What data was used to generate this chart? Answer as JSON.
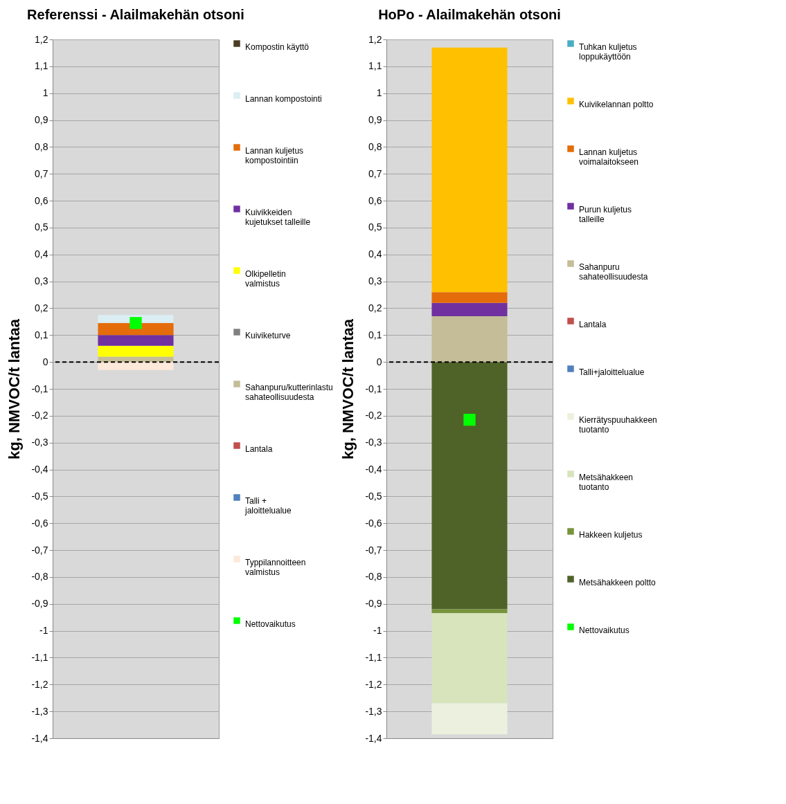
{
  "chart_data": [
    {
      "type": "bar",
      "title": "Referenssi - Alailmakehän otsoni",
      "ylabel": "kg, NMVOC/t lantaa",
      "categories": [
        null
      ],
      "stacked": true,
      "legend": "right",
      "grid": true,
      "tick_labels": "y",
      "ylim": [
        -1.4,
        1.2
      ],
      "yticks": [
        {
          "value": -1.4,
          "label": "-1,4"
        },
        {
          "value": -1.3,
          "label": "-1,3"
        },
        {
          "value": -1.2,
          "label": "-1,2"
        },
        {
          "value": -1.1,
          "label": "-1,1"
        },
        -1,
        {
          "value": -0.9,
          "label": "-0,9"
        },
        {
          "value": -0.8,
          "label": "-0,8"
        },
        {
          "value": -0.7,
          "label": "-0,7"
        },
        {
          "value": -0.6,
          "label": "-0,6"
        },
        {
          "value": -0.5,
          "label": "-0,5"
        },
        {
          "value": -0.4,
          "label": "-0,4"
        },
        {
          "value": -0.3,
          "label": "-0,3"
        },
        {
          "value": -0.2,
          "label": "-0,2"
        },
        {
          "value": -0.1,
          "label": "-0,1"
        },
        0,
        {
          "value": 0.1,
          "label": "0,1"
        },
        {
          "value": 0.2,
          "label": "0,2"
        },
        {
          "value": 0.3,
          "label": "0,3"
        },
        {
          "value": 0.4,
          "label": "0,4"
        },
        {
          "value": 0.5,
          "label": "0,5"
        },
        {
          "value": 0.6,
          "label": "0,6"
        },
        {
          "value": 0.7,
          "label": "0,7"
        },
        {
          "value": 0.8,
          "label": "0,8"
        },
        {
          "value": 0.9,
          "label": "0,9"
        },
        1,
        {
          "value": 1.1,
          "label": "1,1"
        },
        {
          "value": 1.2,
          "label": "1,2"
        }
      ],
      "ref_lines": [
        {
          "axis": "y",
          "value": 0,
          "line_style": "dashed",
          "color": "#000000"
        }
      ],
      "series": [
        {
          "name": "Typpilannoitteen valmistus",
          "color": "#fde9d9",
          "values": [
            -0.03
          ]
        },
        {
          "name": "Talli + jaloittelualue",
          "color": "#4f81bd",
          "values": [
            0
          ]
        },
        {
          "name": "Lantala",
          "color": "#c0504d",
          "values": [
            0
          ]
        },
        {
          "name": "Sahanpuru/kutterinlastu sahateollisuudesta",
          "color": "#c4bd97",
          "values": [
            0.02
          ]
        },
        {
          "name": "Kuiviketurve",
          "color": "#808080",
          "values": [
            0
          ]
        },
        {
          "name": "Olkipelletin valmistus",
          "color": "#ffff00",
          "values": [
            0.04
          ]
        },
        {
          "name": "Kuivikkeiden kujetukset talleille",
          "color": "#7030a0",
          "values": [
            0.04
          ]
        },
        {
          "name": "Lannan kuljetus kompostointiin",
          "color": "#e46c0a",
          "values": [
            0.045
          ]
        },
        {
          "name": "Lannan kompostointi",
          "color": "#daeef3",
          "values": [
            0.03
          ]
        },
        {
          "name": "Kompostin käyttö",
          "color": "#4b3c24",
          "values": [
            0
          ]
        },
        {
          "name": "Nettovaikutus",
          "type": "scatter",
          "marker": "square",
          "color": "#00ff00",
          "values": [
            0.145
          ]
        }
      ]
    },
    {
      "type": "bar",
      "title": "HoPo - Alailmakehän otsoni",
      "ylabel": "kg, NMVOC/t lantaa",
      "categories": [
        null
      ],
      "stacked": true,
      "legend": "right",
      "grid": true,
      "tick_labels": "y",
      "ylim": [
        -1.4,
        1.2
      ],
      "yticks": [
        {
          "value": -1.4,
          "label": "-1,4"
        },
        {
          "value": -1.3,
          "label": "-1,3"
        },
        {
          "value": -1.2,
          "label": "-1,2"
        },
        {
          "value": -1.1,
          "label": "-1,1"
        },
        -1,
        {
          "value": -0.9,
          "label": "-0,9"
        },
        {
          "value": -0.8,
          "label": "-0,8"
        },
        {
          "value": -0.7,
          "label": "-0,7"
        },
        {
          "value": -0.6,
          "label": "-0,6"
        },
        {
          "value": -0.5,
          "label": "-0,5"
        },
        {
          "value": -0.4,
          "label": "-0,4"
        },
        {
          "value": -0.3,
          "label": "-0,3"
        },
        {
          "value": -0.2,
          "label": "-0,2"
        },
        {
          "value": -0.1,
          "label": "-0,1"
        },
        0,
        {
          "value": 0.1,
          "label": "0,1"
        },
        {
          "value": 0.2,
          "label": "0,2"
        },
        {
          "value": 0.3,
          "label": "0,3"
        },
        {
          "value": 0.4,
          "label": "0,4"
        },
        {
          "value": 0.5,
          "label": "0,5"
        },
        {
          "value": 0.6,
          "label": "0,6"
        },
        {
          "value": 0.7,
          "label": "0,7"
        },
        {
          "value": 0.8,
          "label": "0,8"
        },
        {
          "value": 0.9,
          "label": "0,9"
        },
        1,
        {
          "value": 1.1,
          "label": "1,1"
        },
        {
          "value": 1.2,
          "label": "1,2"
        }
      ],
      "ref_lines": [
        {
          "axis": "y",
          "value": 0,
          "line_style": "dashed",
          "color": "#000000"
        }
      ],
      "series": [
        {
          "name": "Metsähakkeen poltto",
          "color": "#4f6228",
          "values": [
            -0.92
          ]
        },
        {
          "name": "Hakkeen kuljetus",
          "color": "#77933c",
          "values": [
            -0.015
          ]
        },
        {
          "name": "Metsähakkeen tuotanto",
          "color": "#d7e4bc",
          "values": [
            -0.335
          ]
        },
        {
          "name": "Kierrätyspuuhakkeen tuotanto",
          "color": "#ebf1de",
          "values": [
            -0.115
          ]
        },
        {
          "name": "Talli+jaloittelualue",
          "color": "#4f81bd",
          "values": [
            0
          ]
        },
        {
          "name": "Lantala",
          "color": "#c0504d",
          "values": [
            0
          ]
        },
        {
          "name": "Sahanpuru sahateollisuudesta",
          "color": "#c4bd97",
          "values": [
            0.17
          ]
        },
        {
          "name": "Purun kuljetus talleille",
          "color": "#7030a0",
          "values": [
            0.05
          ]
        },
        {
          "name": "Lannan kuljetus voimalaitokseen",
          "color": "#e46c0a",
          "values": [
            0.04
          ]
        },
        {
          "name": "Kuivikelannan poltto",
          "color": "#ffc000",
          "values": [
            0.91
          ]
        },
        {
          "name": "Tuhkan kuljetus loppukäyttöön",
          "color": "#4bacc6",
          "values": [
            0
          ]
        },
        {
          "name": "Nettovaikutus",
          "type": "scatter",
          "marker": "square",
          "color": "#00ff00",
          "values": [
            -0.215
          ]
        }
      ]
    }
  ]
}
